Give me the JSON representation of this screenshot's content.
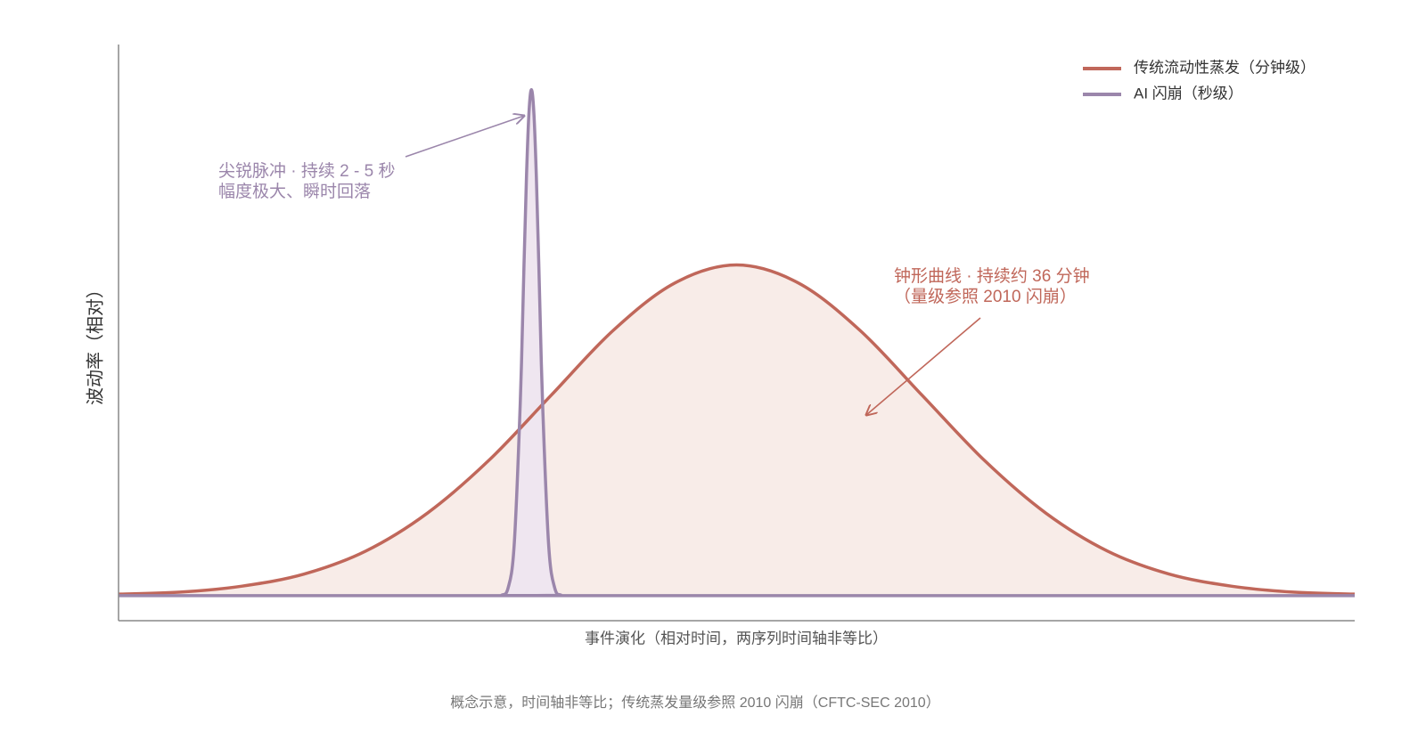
{
  "chart_data": {
    "type": "line",
    "xlabel": "事件演化（相对时间，两序列时间轴非等比）",
    "ylabel": "波动率（相对）",
    "footnote": "概念示意，时间轴非等比；传统蒸发量级参照 2010 闪崩（CFTC-SEC 2010）",
    "xlim": [
      0,
      100
    ],
    "ylim": [
      -5,
      110
    ],
    "legend": "upper right",
    "fill_area": true,
    "series": [
      {
        "name": "传统流动性蒸发（分钟级）",
        "color": "#c0675a",
        "fill": "#f8ece8",
        "x": [
          0,
          5,
          10,
          15,
          20,
          25,
          30,
          35,
          40,
          45,
          50,
          55,
          60,
          65,
          70,
          75,
          80,
          85,
          90,
          95,
          100
        ],
        "values": [
          0.3,
          0.7,
          1.9,
          4.3,
          8.9,
          16.5,
          27.1,
          40.0,
          52.9,
          62.4,
          66,
          62.4,
          52.9,
          40.0,
          27.1,
          16.5,
          8.9,
          4.3,
          1.9,
          0.7,
          0.3
        ]
      },
      {
        "name": "AI 闪崩（秒级）",
        "color": "#9b86ab",
        "fill": "#efe6f0",
        "x": [
          0,
          30,
          31,
          31.5,
          32,
          32.5,
          32.8,
          33,
          33.2,
          33.4,
          33.6,
          33.8,
          34,
          34.3,
          34.8,
          35.3,
          35.8,
          37,
          100
        ],
        "values": [
          0,
          0,
          0.1,
          1.4,
          9.9,
          38.7,
          66,
          83.6,
          96.3,
          101,
          96.3,
          83.6,
          66,
          38.7,
          9.9,
          1.4,
          0.1,
          0,
          0
        ]
      }
    ],
    "annotations": [
      {
        "lines": [
          "尖锐脉冲 · 持续 2 - 5 秒",
          "幅度极大、瞬时回落"
        ]
      },
      {
        "lines": [
          "钟形曲线 · 持续约 36 分钟",
          "（量级参照 2010 闪崩）"
        ]
      }
    ]
  }
}
